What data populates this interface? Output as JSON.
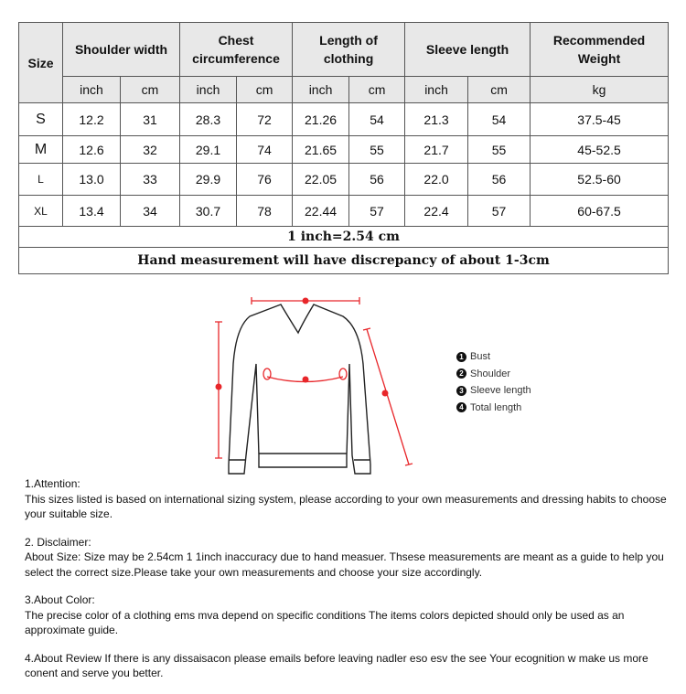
{
  "table": {
    "headers": [
      "Size",
      "Shoulder width",
      "Chest circumference",
      "Length of clothing",
      "Sleeve length",
      "Recommended Weight"
    ],
    "units": [
      "inch",
      "cm",
      "inch",
      "cm",
      "inch",
      "cm",
      "inch",
      "cm",
      "kg"
    ],
    "rows": [
      [
        "S",
        "12.2",
        "31",
        "28.3",
        "72",
        "21.26",
        "54",
        "21.3",
        "54",
        "37.5-45"
      ],
      [
        "M",
        "12.6",
        "32",
        "29.1",
        "74",
        "21.65",
        "55",
        "21.7",
        "55",
        "45-52.5"
      ],
      [
        "L",
        "13.0",
        "33",
        "29.9",
        "76",
        "22.05",
        "56",
        "22.0",
        "56",
        "52.5-60"
      ],
      [
        "XL",
        "13.4",
        "34",
        "30.7",
        "78",
        "22.44",
        "57",
        "22.4",
        "57",
        "60-67.5"
      ]
    ],
    "conversion_note": "1 inch=2.54 cm",
    "discrepancy_note": "Hand measurement will have discrepancy of about 1-3cm"
  },
  "diagram": {
    "marker_color": "#e8262a",
    "legend": [
      {
        "num": "1",
        "label": "Bust"
      },
      {
        "num": "2",
        "label": "Shoulder"
      },
      {
        "num": "3",
        "label": "Sleeve length"
      },
      {
        "num": "4",
        "label": "Total length"
      }
    ]
  },
  "notes": [
    {
      "title": "1.Attention:",
      "body": "This sizes listed is based on international sizing system, please according to your own measurements and dressing   habits to choose your suitable size."
    },
    {
      "title": "2. Disclaimer:",
      "body": "About Size: Size may be 2.54cm 1 1inch inaccuracy due to hand measuer. Thsese measurements are meant as a   guide to help you select the correct size.Please take your own measurements and choose your size accordingly."
    },
    {
      "title": "3.About Color:",
      "body": "The precise color of a clothing ems mva depend on specific conditions The items colors depicted should only be   used as an approximate guide."
    },
    {
      "title": "",
      "body": "4.About Review If there is any dissaisacon please emails before leaving nadler eso esv the see Your ecognition w   make us more conent and serve you better."
    }
  ]
}
